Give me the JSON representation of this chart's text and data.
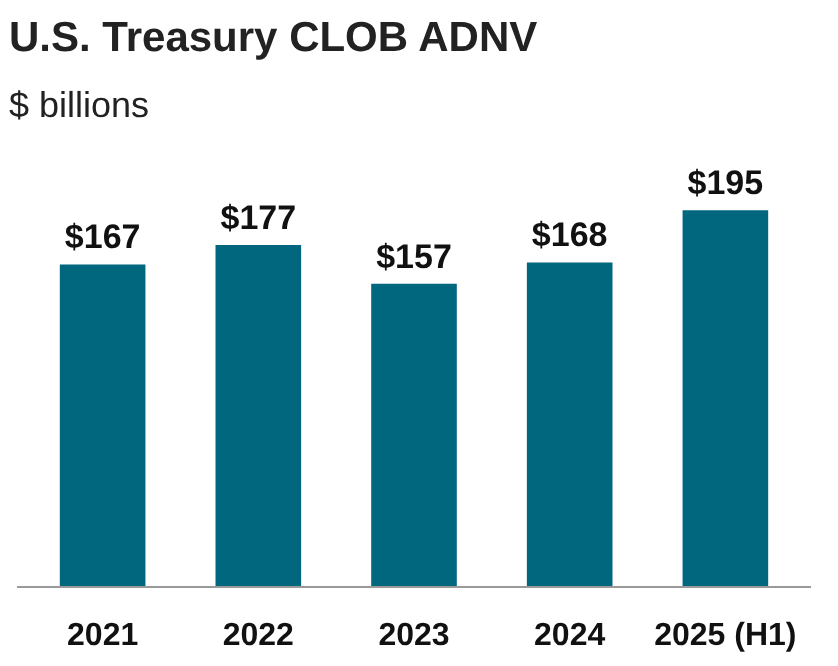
{
  "chart_data": {
    "type": "bar",
    "title": "U.S. Treasury CLOB ADNV",
    "subtitle": "$ billions",
    "categories": [
      "2021",
      "2022",
      "2023",
      "2024",
      "2025 (H1)"
    ],
    "values": [
      167,
      177,
      157,
      168,
      195
    ],
    "value_labels": [
      "$167",
      "$177",
      "$157",
      "$168",
      "$195"
    ],
    "color": "#00677f",
    "grid": false
  }
}
